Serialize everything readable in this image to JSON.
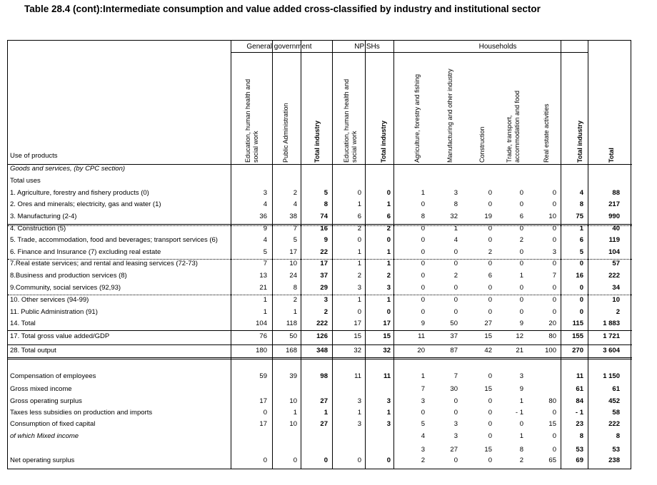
{
  "title": "Table 28.4 (cont):Intermediate consumption and value added cross-classified by industry and institutional sector",
  "groups": [
    "General government",
    "NPISHs",
    "Households"
  ],
  "col_headers": [
    "Education, human health and social work",
    "Public Administration",
    "Total industry",
    "Education, human health and social work",
    "Total industry",
    "Agriculture, forestry and fishing",
    "Manufacturing and other industry",
    "Construction",
    "Trade, transport, accommodation and food",
    "Real estate activities",
    "Total industry",
    "Total"
  ],
  "use_of_products": "Use of products",
  "rows": [
    {
      "label": "Goods and services, (by CPC section)",
      "values": []
    },
    {
      "label": "Total uses",
      "values": []
    },
    {
      "label": "1. Agriculture, forestry and fishery products (0)",
      "values": [
        "3",
        "2",
        "5",
        "0",
        "0",
        "1",
        "3",
        "0",
        "0",
        "0",
        "4",
        "88"
      ]
    },
    {
      "label": "2. Ores and minerals; electricity, gas and water (1)",
      "values": [
        "4",
        "4",
        "8",
        "1",
        "1",
        "0",
        "8",
        "0",
        "0",
        "0",
        "8",
        "217"
      ]
    },
    {
      "label": "3. Manufacturing (2-4)",
      "values": [
        "36",
        "38",
        "74",
        "6",
        "6",
        "8",
        "32",
        "19",
        "6",
        "10",
        "75",
        "990"
      ]
    },
    {
      "label": "4. Construction (5)",
      "values": [
        "9",
        "7",
        "16",
        "2",
        "2",
        "0",
        "1",
        "0",
        "0",
        "0",
        "1",
        "40"
      ]
    },
    {
      "label": "5. Trade, accommodation, food and beverages; transport services  (6)",
      "values": [
        "4",
        "5",
        "9",
        "0",
        "0",
        "0",
        "4",
        "0",
        "2",
        "0",
        "6",
        "119"
      ]
    },
    {
      "label": "6. Finance and Insurance (7) excluding real estate",
      "values": [
        "5",
        "17",
        "22",
        "1",
        "1",
        "0",
        "0",
        "2",
        "0",
        "3",
        "5",
        "104"
      ]
    },
    {
      "label": "7.Real estate services; and rental and leasing services (72-73)",
      "values": [
        "7",
        "10",
        "17",
        "1",
        "1",
        "0",
        "0",
        "0",
        "0",
        "0",
        "0",
        "57"
      ]
    },
    {
      "label": "8.Business and production services (8)",
      "values": [
        "13",
        "24",
        "37",
        "2",
        "2",
        "0",
        "2",
        "6",
        "1",
        "7",
        "16",
        "222"
      ]
    },
    {
      "label": "9.Community, social services (92,93)",
      "values": [
        "21",
        "8",
        "29",
        "3",
        "3",
        "0",
        "0",
        "0",
        "0",
        "0",
        "0",
        "34"
      ]
    },
    {
      "label": "10. Other services (94-99)",
      "values": [
        "1",
        "2",
        "3",
        "1",
        "1",
        "0",
        "0",
        "0",
        "0",
        "0",
        "0",
        "10"
      ]
    },
    {
      "label": "11. Public Administration (91)",
      "values": [
        "1",
        "1",
        "2",
        "0",
        "0",
        "0",
        "0",
        "0",
        "0",
        "0",
        "0",
        "2"
      ]
    },
    {
      "label": "14. Total",
      "values": [
        "104",
        "118",
        "222",
        "17",
        "17",
        "9",
        "50",
        "27",
        "9",
        "20",
        "115",
        "1 883"
      ]
    },
    {
      "label": "17. Total gross value added/GDP",
      "values": [
        "76",
        "50",
        "126",
        "15",
        "15",
        "11",
        "37",
        "15",
        "12",
        "80",
        "155",
        "1 721"
      ]
    },
    {
      "label": "28. Total output",
      "values": [
        "180",
        "168",
        "348",
        "32",
        "32",
        "20",
        "87",
        "42",
        "21",
        "100",
        "270",
        "3 604"
      ]
    },
    {
      "label": "Compensation of employees",
      "values": [
        "59",
        "39",
        "98",
        "11",
        "11",
        "1",
        "7",
        "0",
        "3",
        "",
        "11",
        "1 150"
      ]
    },
    {
      "label": "Gross mixed income",
      "values": [
        "",
        "",
        "",
        "",
        "",
        "7",
        "30",
        "15",
        "9",
        "",
        "61",
        "61"
      ]
    },
    {
      "label": "Gross operating surplus",
      "values": [
        "17",
        "10",
        "27",
        "3",
        "3",
        "3",
        "0",
        "0",
        "1",
        "80",
        "84",
        "452"
      ]
    },
    {
      "label": "Taxes less subsidies on production and imports",
      "values": [
        "0",
        "1",
        "1",
        "1",
        "1",
        "0",
        "0",
        "0",
        "- 1",
        "0",
        "- 1",
        "58"
      ]
    },
    {
      "label": "Consumption of fixed capital",
      "values": [
        "17",
        "10",
        "27",
        "3",
        "3",
        "5",
        "3",
        "0",
        "0",
        "15",
        "23",
        "222"
      ]
    },
    {
      "label": "of which  Mixed income",
      "values": [
        "",
        "",
        "",
        "",
        "",
        "4",
        "3",
        "0",
        "1",
        "0",
        "8",
        "8"
      ]
    },
    {
      "label": "",
      "values": [
        "",
        "",
        "",
        "",
        "",
        "3",
        "27",
        "15",
        "8",
        "0",
        "53",
        "53"
      ]
    },
    {
      "label": "Net operating surplus",
      "values": [
        "0",
        "0",
        "0",
        "0",
        "0",
        "2",
        "0",
        "0",
        "2",
        "65",
        "69",
        "238"
      ]
    }
  ]
}
